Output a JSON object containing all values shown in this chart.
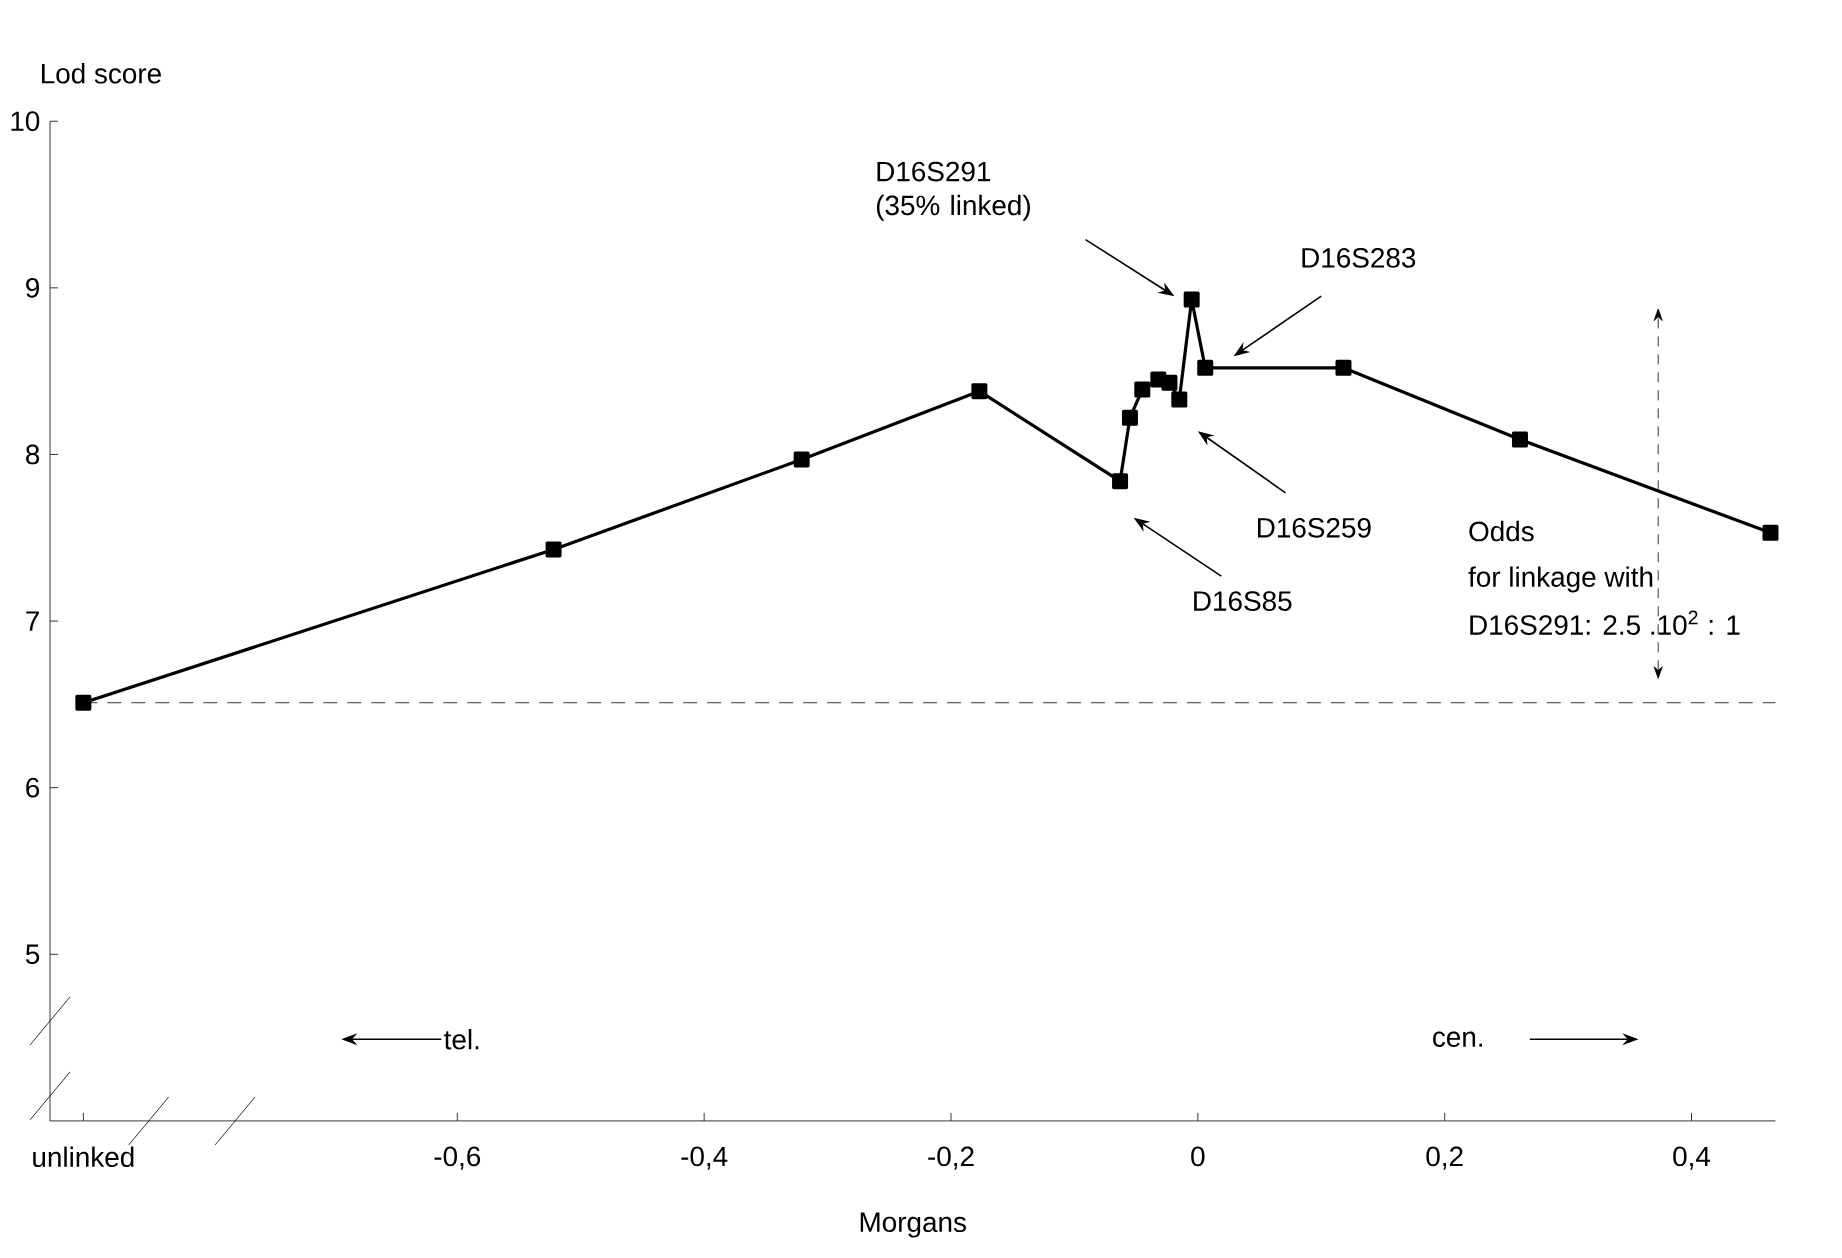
{
  "chart_data": {
    "type": "line",
    "xlabel": "Morgans",
    "ylabel": "Lod score",
    "x": [
      -0.903,
      -0.522,
      -0.321,
      -0.177,
      -0.063,
      -0.055,
      -0.045,
      -0.032,
      -0.023,
      -0.015,
      -0.005,
      0.006,
      0.118,
      0.261,
      0.464
    ],
    "series": [
      {
        "color": "#000000",
        "values": [
          6.51,
          7.43,
          7.97,
          8.38,
          7.84,
          8.22,
          8.39,
          8.45,
          8.43,
          8.33,
          8.93,
          8.52,
          8.52,
          8.09,
          7.53
        ]
      }
    ],
    "marker": "square",
    "line_style": "solid",
    "xlim": [
      -0.93,
      0.468
    ],
    "ylim": [
      4,
      10
    ],
    "xticks": [
      {
        "value": -0.903,
        "label": "unlinked"
      },
      {
        "value": -0.6,
        "label": "-0,6"
      },
      {
        "value": -0.4,
        "label": "-0,4"
      },
      {
        "value": -0.2,
        "label": "-0,2"
      },
      0,
      {
        "value": 0.2,
        "label": "0,2"
      },
      {
        "value": 0.4,
        "label": "0,4"
      }
    ],
    "yticks": [
      5,
      6,
      7,
      8,
      9,
      10
    ],
    "ref_lines": [
      {
        "axis": "y",
        "value": 6.51,
        "line_style": "dashed",
        "color": "#000000"
      }
    ],
    "annotations": [
      "D16S291 (35% linked)",
      "D16S283",
      "D16S259",
      "D16S85",
      "Odds",
      "for linkage with",
      "D16S291: 2.5 .10$^{2}$ : 1",
      "tel.",
      "cen."
    ]
  }
}
